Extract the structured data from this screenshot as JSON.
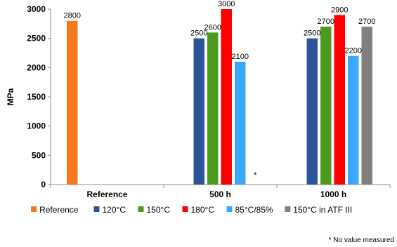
{
  "chart_data": {
    "type": "bar",
    "ylabel": "MPa",
    "xlabel": "",
    "ylim": [
      0,
      3000
    ],
    "yticks": [
      0,
      500,
      1000,
      1500,
      2000,
      2500,
      3000
    ],
    "categories": [
      "Reference",
      "500 h",
      "1000 h"
    ],
    "series": [
      {
        "name": "Reference",
        "color": "#f47920",
        "values": [
          2800,
          null,
          null
        ]
      },
      {
        "name": "120°C",
        "color": "#2c5597",
        "values": [
          null,
          2500,
          2500
        ]
      },
      {
        "name": "150°C",
        "color": "#4c9a1c",
        "values": [
          null,
          2600,
          2700
        ]
      },
      {
        "name": "180°C",
        "color": "#ff0000",
        "values": [
          null,
          3000,
          2900
        ]
      },
      {
        "name": "85°C/85%",
        "color": "#3aa8ff",
        "values": [
          null,
          2100,
          2200
        ]
      },
      {
        "name": "150°C in ATF III",
        "color": "#808080",
        "values": [
          null,
          null,
          2700
        ]
      }
    ],
    "annotations": [
      {
        "text": "*",
        "category": "500 h",
        "series": "150°C in ATF III"
      }
    ],
    "legend_position": "bottom",
    "grid": false
  },
  "footnote": "* No value measured"
}
